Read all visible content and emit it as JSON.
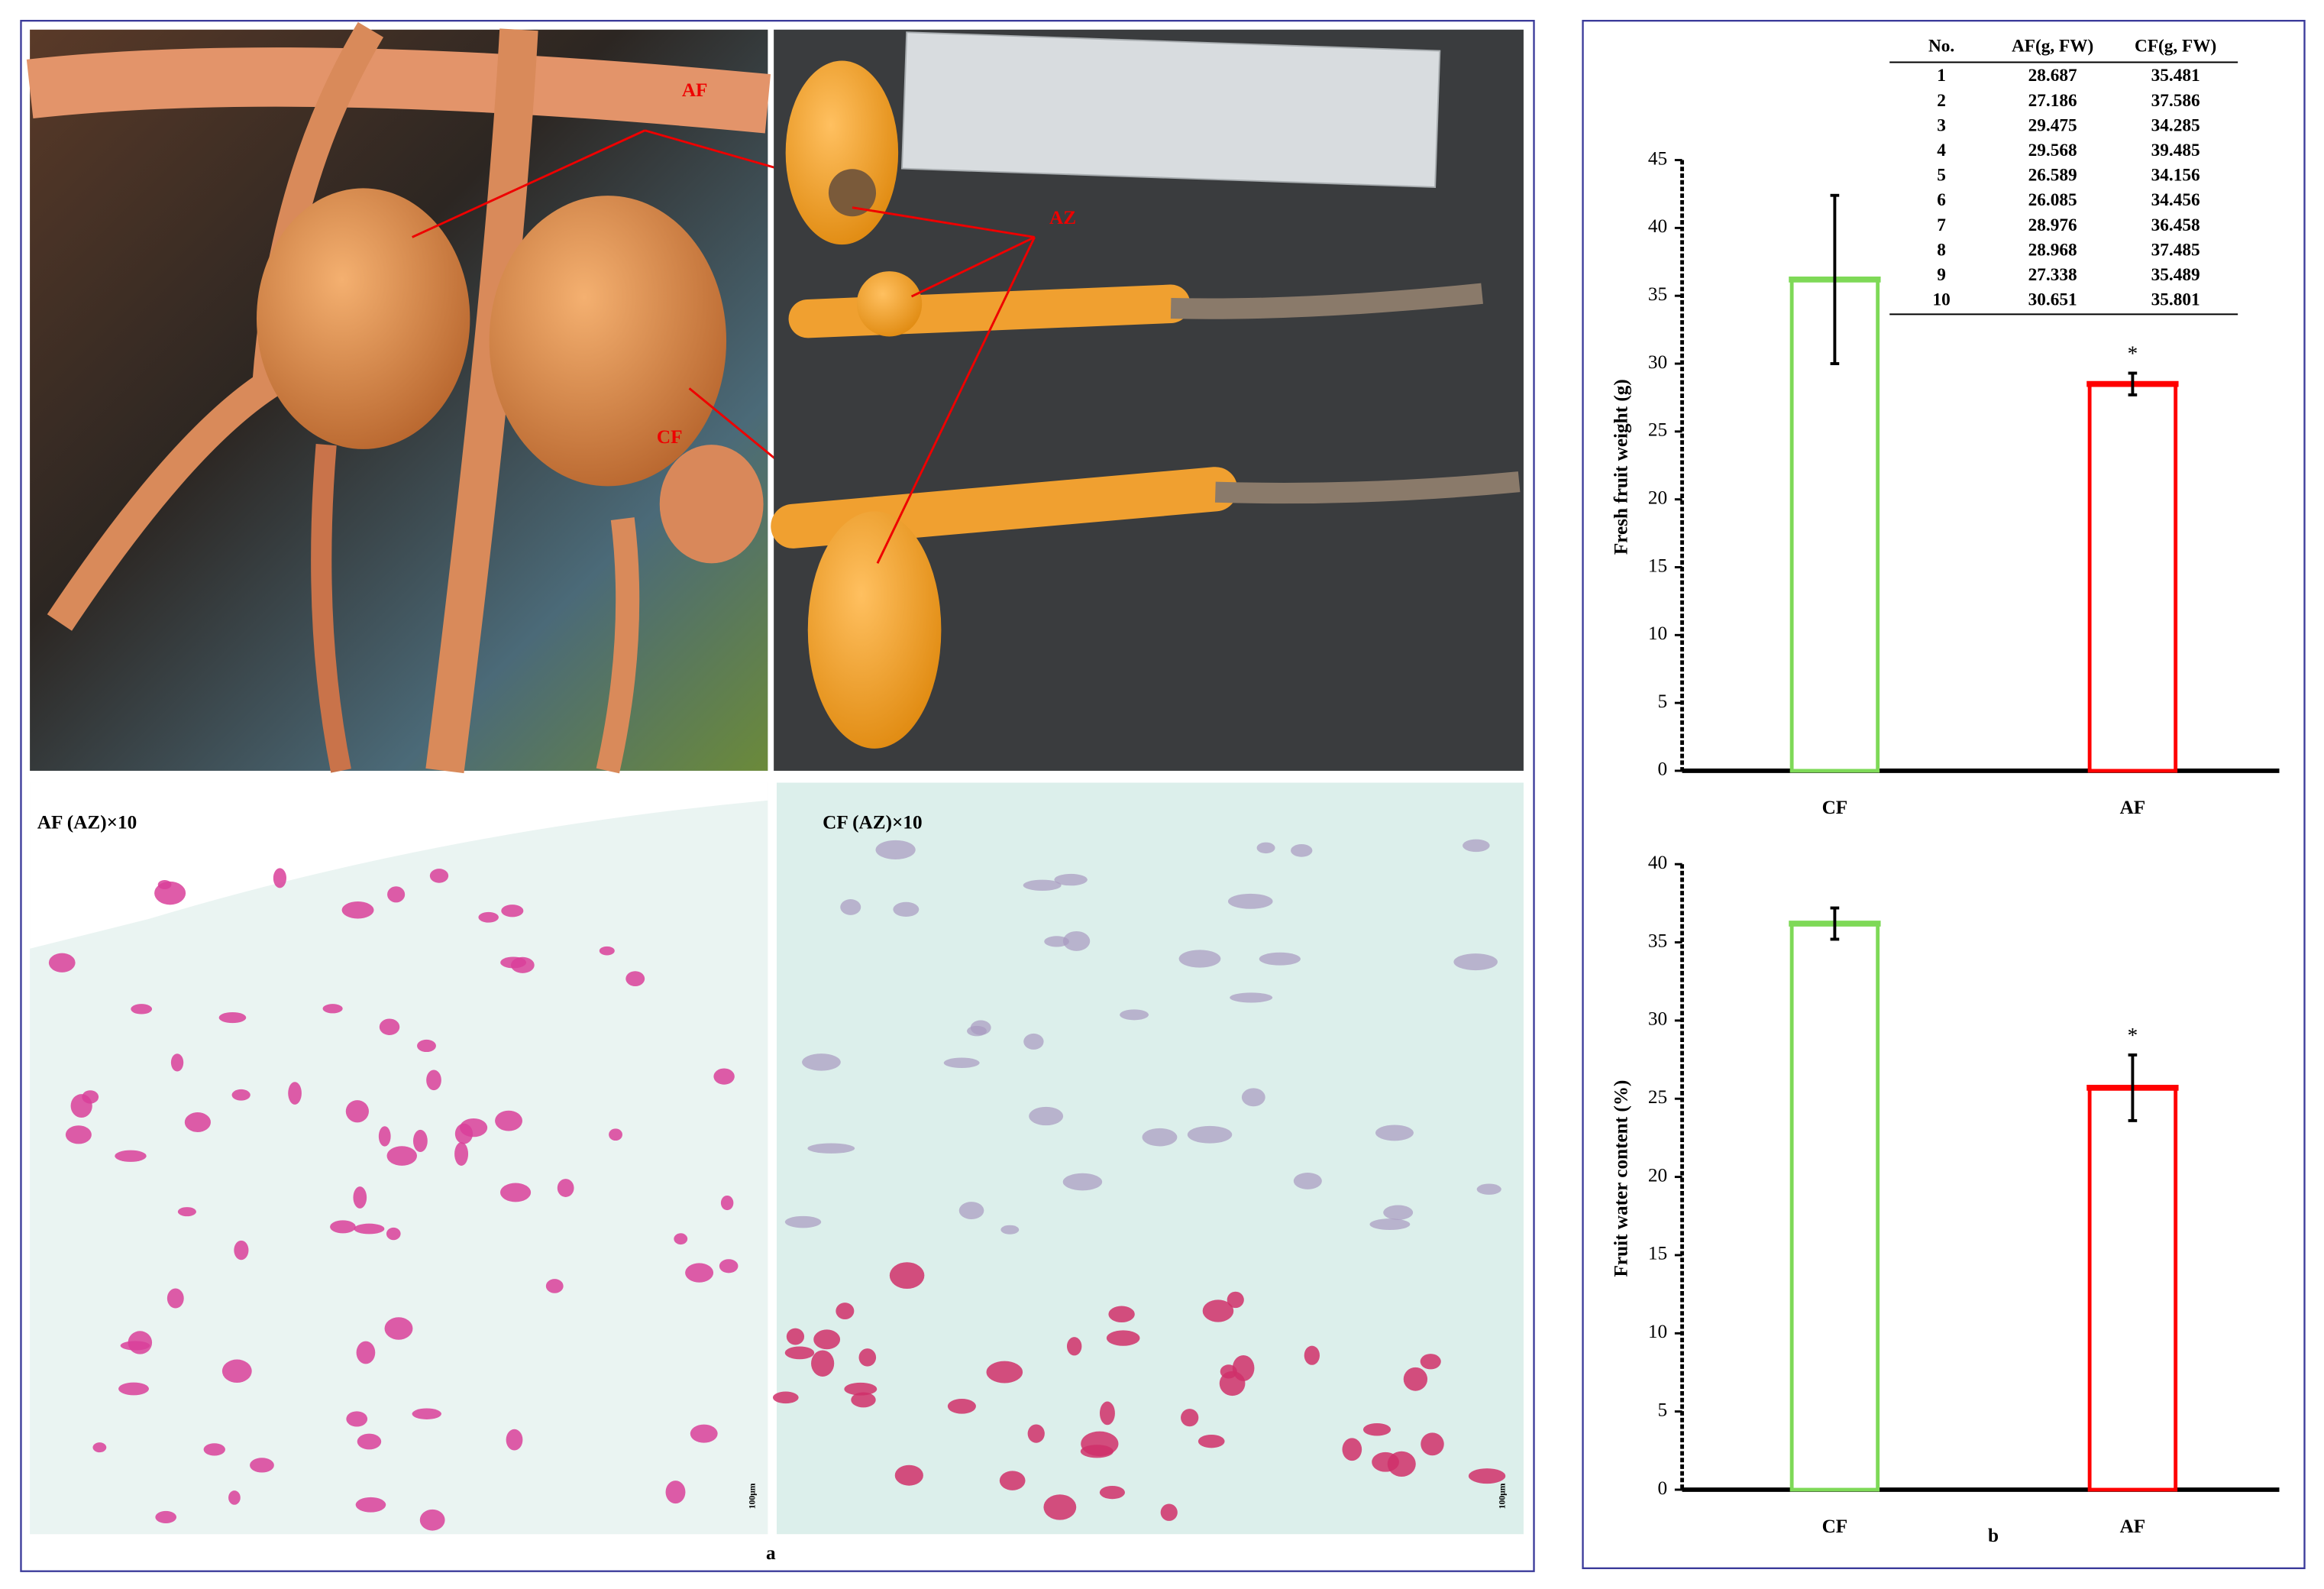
{
  "figure_labels": {
    "a": "a",
    "b": "b"
  },
  "photos": {
    "af_label": "AF",
    "cf_label": "CF",
    "az_label": "AZ",
    "af_section": "AF (AZ)×10",
    "cf_section": "CF (AZ)×10",
    "scale_left": "100μm",
    "scale_right": "100μm"
  },
  "table": {
    "header": [
      "No.",
      "AF(g, FW)",
      "CF(g, FW)"
    ],
    "rows": [
      [
        1,
        28.687,
        35.481
      ],
      [
        2,
        27.186,
        37.586
      ],
      [
        3,
        29.475,
        34.285
      ],
      [
        4,
        29.568,
        39.485
      ],
      [
        5,
        26.589,
        34.156
      ],
      [
        6,
        26.085,
        34.456
      ],
      [
        7,
        28.976,
        36.458
      ],
      [
        8,
        28.968,
        37.485
      ],
      [
        9,
        27.338,
        35.489
      ],
      [
        10,
        30.651,
        35.801
      ]
    ]
  },
  "chart_data": [
    {
      "type": "bar",
      "y_label": "Fresh fruit weight (g)",
      "categories": [
        "CF",
        "AF"
      ],
      "values": [
        36.2,
        28.5
      ],
      "errors": [
        6.2,
        0.8
      ],
      "colors": [
        "#7ed957",
        "#ff0000"
      ],
      "value_annotations": [
        null,
        "*"
      ],
      "ylim": [
        0,
        45
      ],
      "yticks": [
        0,
        5,
        10,
        15,
        20,
        25,
        30,
        35,
        40,
        45
      ]
    },
    {
      "type": "bar",
      "y_label": "Fruit water content (%)",
      "categories": [
        "CF",
        "AF"
      ],
      "values": [
        36.2,
        25.7
      ],
      "errors": [
        1.0,
        2.1
      ],
      "colors": [
        "#7ed957",
        "#ff0000"
      ],
      "value_annotations": [
        null,
        "*"
      ],
      "ylim": [
        0,
        40
      ],
      "yticks": [
        0,
        5,
        10,
        15,
        20,
        25,
        30,
        35,
        40
      ]
    }
  ]
}
